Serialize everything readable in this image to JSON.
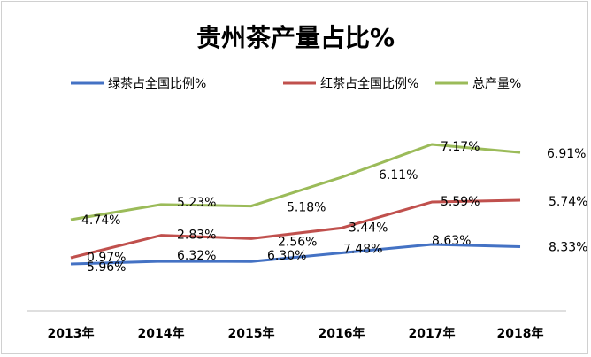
{
  "chart_data": {
    "type": "line",
    "title": "贵州茶产量占比%",
    "categories": [
      "2013年",
      "2014年",
      "2015年",
      "2016年",
      "2017年",
      "2018年"
    ],
    "grid": false,
    "legend_position": "top",
    "series": [
      {
        "name": "绿茶占全国比例%",
        "color": "#4472c4",
        "values": [
          5.96,
          6.32,
          6.3,
          7.48,
          8.63,
          8.33
        ],
        "labels": [
          "5.96%",
          "6.32%",
          "6.30%",
          "7.48%",
          "8.63%",
          "8.33%"
        ]
      },
      {
        "name": "红茶占全国比例%",
        "color": "#c0504d",
        "values": [
          0.97,
          2.83,
          2.56,
          3.44,
          5.59,
          5.74
        ],
        "labels": [
          "0.97%",
          "2.83%",
          "2.56%",
          "3.44%",
          "5.59%",
          "5.74%"
        ]
      },
      {
        "name": "总产量%",
        "color": "#9bbb59",
        "values": [
          4.74,
          5.23,
          5.18,
          6.11,
          7.17,
          6.91
        ],
        "labels": [
          "4.74%",
          "5.23%",
          "5.18%",
          "6.11%",
          "7.17%",
          "6.91%"
        ]
      }
    ]
  }
}
